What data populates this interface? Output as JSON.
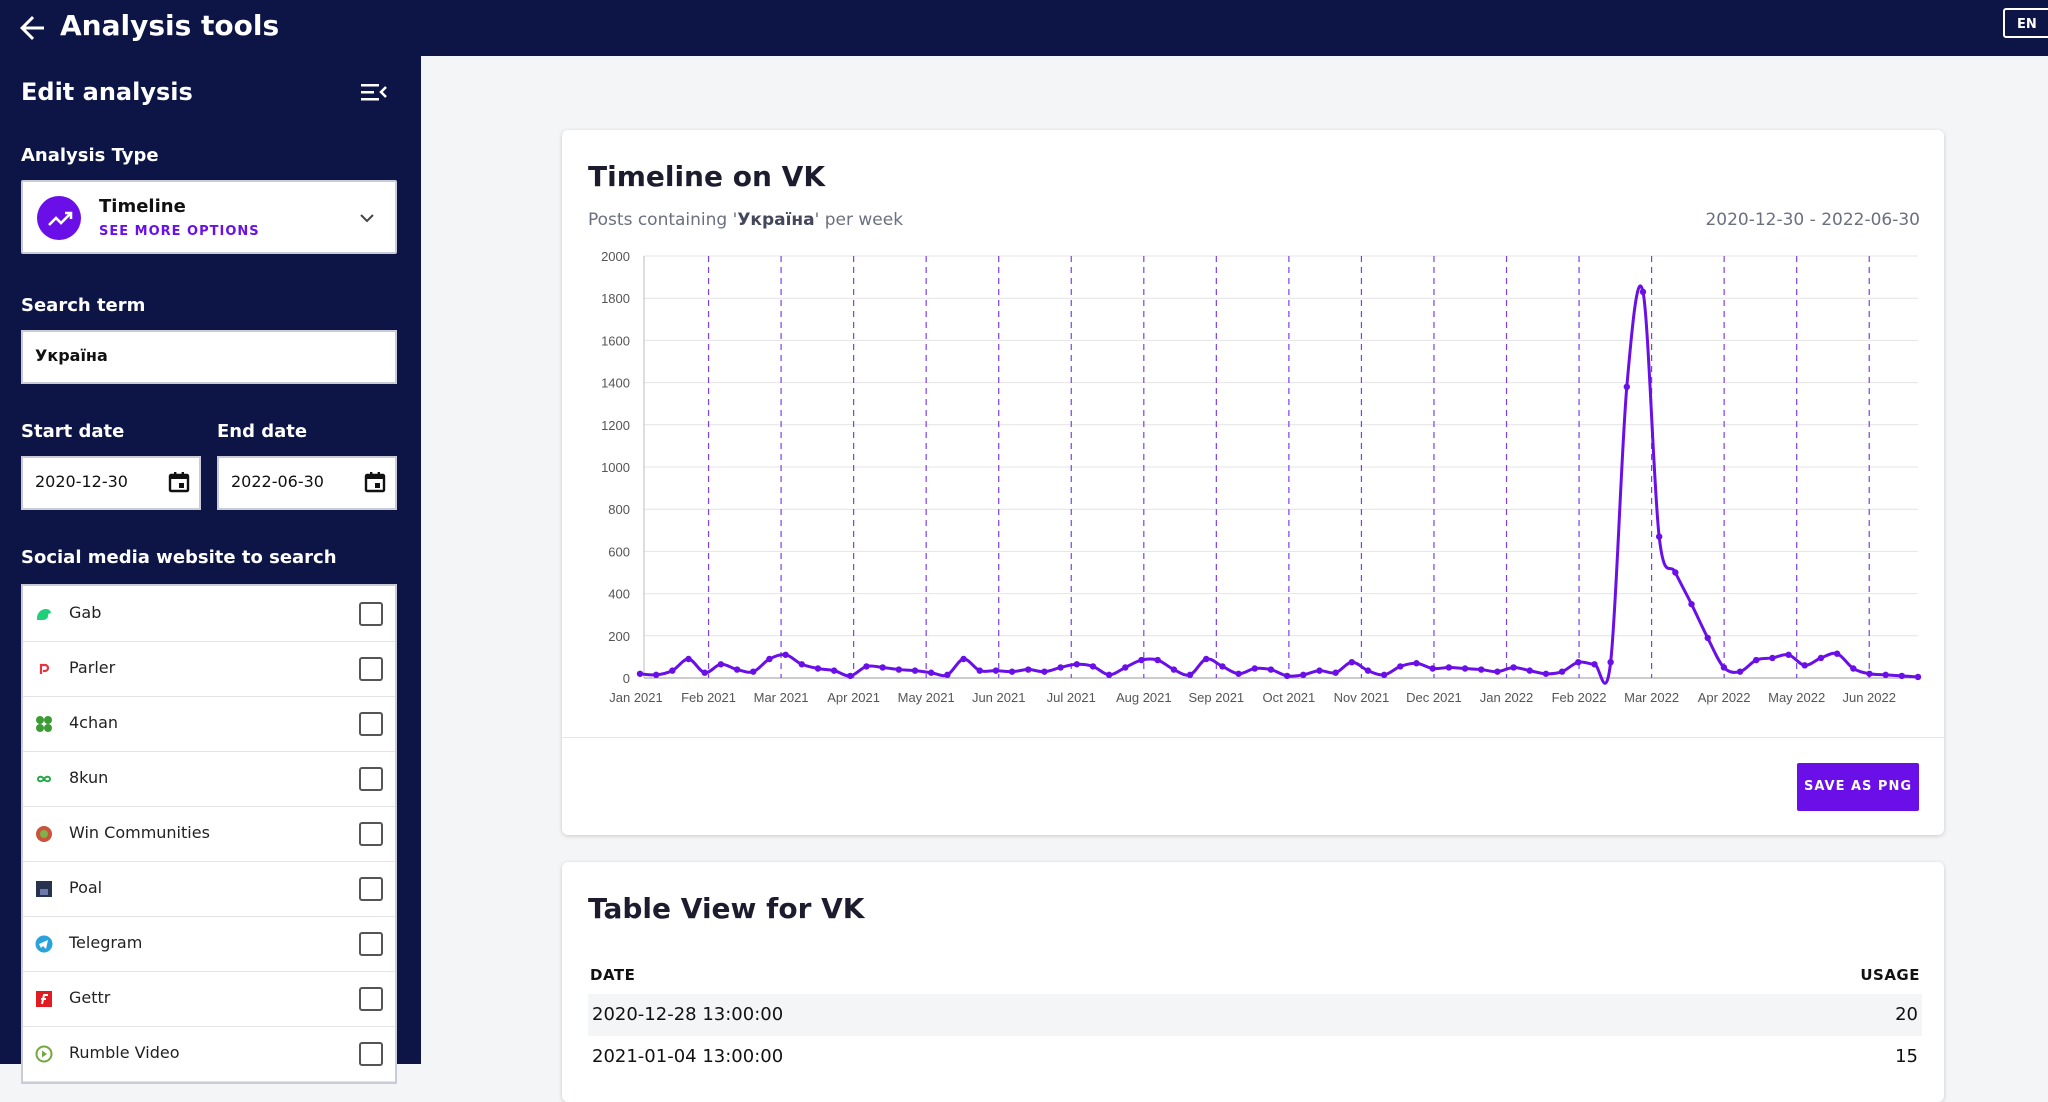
{
  "header": {
    "title": "Analysis tools",
    "lang": "EN"
  },
  "sidebar": {
    "heading": "Edit analysis",
    "analysis_type_label": "Analysis Type",
    "analysis_type": {
      "name": "Timeline",
      "more": "SEE MORE OPTIONS"
    },
    "search_label": "Search term",
    "search_value": "Україна",
    "start_label": "Start date",
    "start_value": "2020-12-30",
    "end_label": "End date",
    "end_value": "2022-06-30",
    "social_label": "Social media website to search",
    "sites": [
      {
        "name": "Gab",
        "color": "#21cf7a"
      },
      {
        "name": "Parler",
        "color": "#e8343d"
      },
      {
        "name": "4chan",
        "color": "#3d9b35"
      },
      {
        "name": "8kun",
        "color": "#2aa84a"
      },
      {
        "name": "Win Communities",
        "color": "#c9533d"
      },
      {
        "name": "Poal",
        "color": "#27324f"
      },
      {
        "name": "Telegram",
        "color": "#2aa3dc"
      },
      {
        "name": "Gettr",
        "color": "#e01b22"
      },
      {
        "name": "Rumble Video",
        "color": "#74a642"
      }
    ]
  },
  "chart_card": {
    "title": "Timeline on VK",
    "subtitle_pre": "Posts containing '",
    "subtitle_term": "Україна",
    "subtitle_post": "' per week",
    "range": "2020-12-30 - 2022-06-30",
    "save_label": "SAVE AS PNG"
  },
  "chart_data": {
    "type": "line",
    "ylim": [
      0,
      2000
    ],
    "yticks": [
      0,
      200,
      400,
      600,
      800,
      1000,
      1200,
      1400,
      1600,
      1800,
      2000
    ],
    "xticks": [
      "Jan 2021",
      "Feb 2021",
      "Mar 2021",
      "Apr 2021",
      "May 2021",
      "Jun 2021",
      "Jul 2021",
      "Aug 2021",
      "Sep 2021",
      "Oct 2021",
      "Nov 2021",
      "Dec 2021",
      "Jan 2022",
      "Feb 2022",
      "Mar 2022",
      "Apr 2022",
      "May 2022",
      "Jun 2022"
    ],
    "values": [
      20,
      15,
      35,
      90,
      25,
      65,
      40,
      30,
      90,
      110,
      65,
      45,
      35,
      10,
      55,
      50,
      40,
      35,
      25,
      15,
      90,
      35,
      35,
      30,
      40,
      30,
      50,
      65,
      55,
      15,
      50,
      85,
      85,
      40,
      15,
      90,
      55,
      20,
      45,
      40,
      10,
      15,
      35,
      25,
      75,
      35,
      15,
      55,
      70,
      45,
      50,
      45,
      40,
      30,
      50,
      35,
      20,
      30,
      75,
      65,
      75,
      1380,
      1830,
      670,
      500,
      350,
      190,
      50,
      30,
      85,
      95,
      110,
      60,
      95,
      115,
      45,
      20,
      15,
      10,
      5
    ],
    "series_color": "#6a0fe8"
  },
  "table_card": {
    "title": "Table View for VK",
    "col_date": "DATE",
    "col_usage": "USAGE",
    "rows": [
      {
        "date": "2020-12-28 13:00:00",
        "usage": "20"
      },
      {
        "date": "2021-01-04 13:00:00",
        "usage": "15"
      }
    ]
  }
}
